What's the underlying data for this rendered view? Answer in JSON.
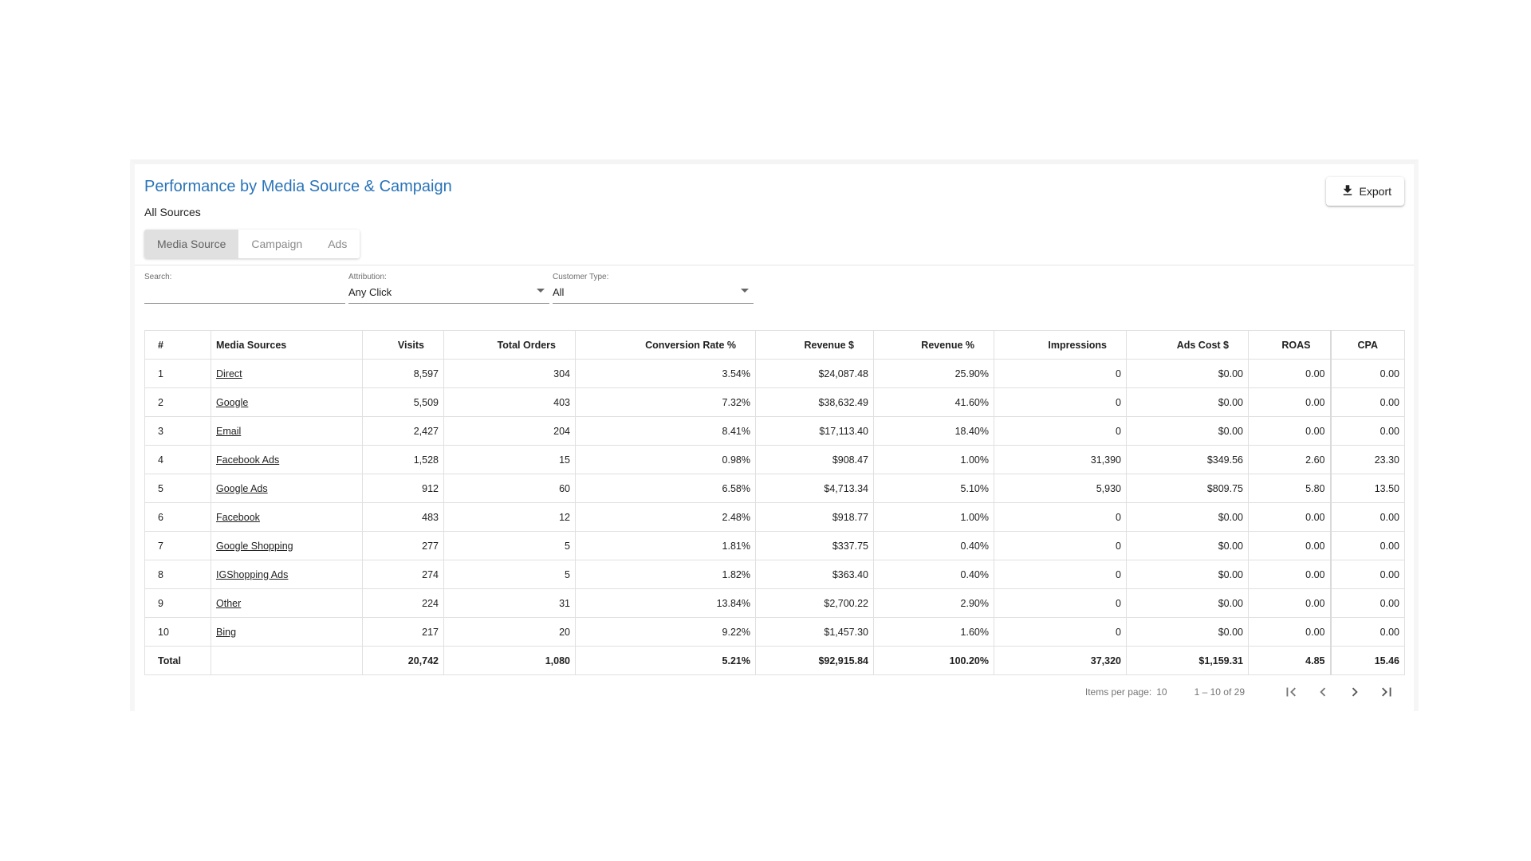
{
  "header": {
    "title": "Performance by Media Source & Campaign",
    "subtitle": "All Sources",
    "export_label": "Export"
  },
  "tabs": [
    {
      "label": "Media Source",
      "active": true
    },
    {
      "label": "Campaign",
      "active": false
    },
    {
      "label": "Ads",
      "active": false
    }
  ],
  "filters": {
    "search": {
      "label": "Search:",
      "value": "",
      "placeholder": ""
    },
    "attribution": {
      "label": "Attribution:",
      "value": "Any Click"
    },
    "customer_type": {
      "label": "Customer Type:",
      "value": "All"
    }
  },
  "table": {
    "columns": [
      "#",
      "Media Sources",
      "Visits",
      "Total Orders",
      "Conversion Rate %",
      "Revenue $",
      "Revenue %",
      "Impressions",
      "Ads Cost $",
      "ROAS",
      "CPA"
    ],
    "rows": [
      [
        "1",
        "Direct",
        "8,597",
        "304",
        "3.54%",
        "$24,087.48",
        "25.90%",
        "0",
        "$0.00",
        "0.00",
        "0.00"
      ],
      [
        "2",
        "Google",
        "5,509",
        "403",
        "7.32%",
        "$38,632.49",
        "41.60%",
        "0",
        "$0.00",
        "0.00",
        "0.00"
      ],
      [
        "3",
        "Email",
        "2,427",
        "204",
        "8.41%",
        "$17,113.40",
        "18.40%",
        "0",
        "$0.00",
        "0.00",
        "0.00"
      ],
      [
        "4",
        "Facebook Ads",
        "1,528",
        "15",
        "0.98%",
        "$908.47",
        "1.00%",
        "31,390",
        "$349.56",
        "2.60",
        "23.30"
      ],
      [
        "5",
        "Google Ads",
        "912",
        "60",
        "6.58%",
        "$4,713.34",
        "5.10%",
        "5,930",
        "$809.75",
        "5.80",
        "13.50"
      ],
      [
        "6",
        "Facebook",
        "483",
        "12",
        "2.48%",
        "$918.77",
        "1.00%",
        "0",
        "$0.00",
        "0.00",
        "0.00"
      ],
      [
        "7",
        "Google Shopping",
        "277",
        "5",
        "1.81%",
        "$337.75",
        "0.40%",
        "0",
        "$0.00",
        "0.00",
        "0.00"
      ],
      [
        "8",
        "IGShopping Ads",
        "274",
        "5",
        "1.82%",
        "$363.40",
        "0.40%",
        "0",
        "$0.00",
        "0.00",
        "0.00"
      ],
      [
        "9",
        "Other",
        "224",
        "31",
        "13.84%",
        "$2,700.22",
        "2.90%",
        "0",
        "$0.00",
        "0.00",
        "0.00"
      ],
      [
        "10",
        "Bing",
        "217",
        "20",
        "9.22%",
        "$1,457.30",
        "1.60%",
        "0",
        "$0.00",
        "0.00",
        "0.00"
      ]
    ],
    "total": [
      "Total",
      "",
      "20,742",
      "1,080",
      "5.21%",
      "$92,915.84",
      "100.20%",
      "37,320",
      "$1,159.31",
      "4.85",
      "15.46"
    ]
  },
  "paginator": {
    "items_per_page_label": "Items per page:",
    "items_per_page": "10",
    "range": "1 – 10 of 29"
  },
  "icons": {
    "export": "download-icon",
    "first": "first-page-icon",
    "prev": "chevron-left-icon",
    "next": "chevron-right-icon",
    "last": "last-page-icon"
  },
  "colors": {
    "title": "#2a74b8",
    "active_tab_bg": "#e0e0e0"
  }
}
